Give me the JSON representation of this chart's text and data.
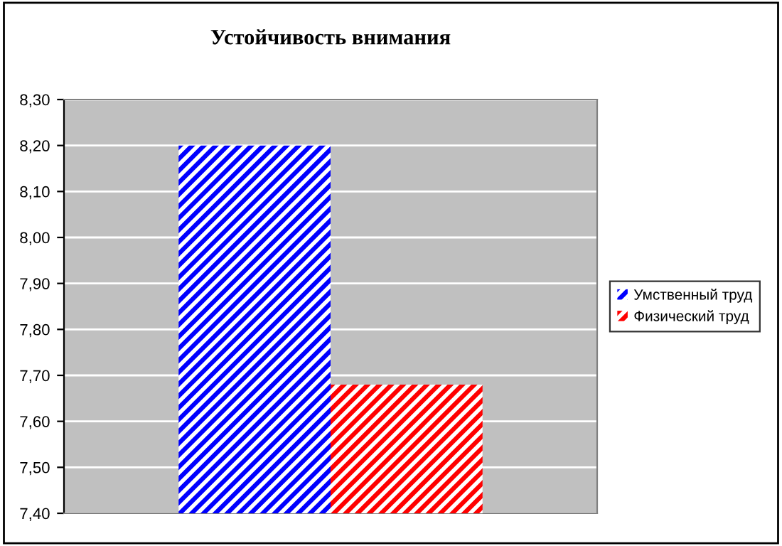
{
  "chart_data": {
    "type": "bar",
    "title": "Устойчивость внимания",
    "categories": [
      null
    ],
    "series": [
      {
        "name": "Умственный труд",
        "color": "#0000ff",
        "values": [
          8.2
        ]
      },
      {
        "name": "Физический труд",
        "color": "#ff0000",
        "values": [
          7.68
        ]
      }
    ],
    "ylim": [
      7.4,
      8.3
    ],
    "yticks": [
      {
        "value": 7.4,
        "label": "7,40"
      },
      {
        "value": 7.5,
        "label": "7,50"
      },
      {
        "value": 7.6,
        "label": "7,60"
      },
      {
        "value": 7.7,
        "label": "7,70"
      },
      {
        "value": 7.8,
        "label": "7,80"
      },
      {
        "value": 7.9,
        "label": "7,90"
      },
      {
        "value": 8.0,
        "label": "8,00"
      },
      {
        "value": 8.1,
        "label": "8,10"
      },
      {
        "value": 8.2,
        "label": "8,20"
      },
      {
        "value": 8.3,
        "label": "8,30"
      }
    ],
    "grid": "y",
    "legend": "right"
  }
}
